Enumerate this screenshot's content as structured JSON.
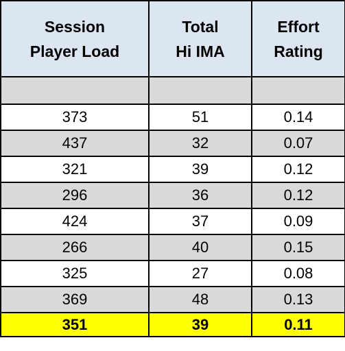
{
  "table": {
    "headers": [
      [
        "Session",
        "Player Load"
      ],
      [
        "Total",
        "Hi IMA"
      ],
      [
        "Effort",
        "Rating"
      ]
    ],
    "rows": [
      [
        373,
        51,
        0.14
      ],
      [
        437,
        32,
        0.07
      ],
      [
        321,
        39,
        0.12
      ],
      [
        296,
        36,
        0.12
      ],
      [
        424,
        37,
        0.09
      ],
      [
        266,
        40,
        0.15
      ],
      [
        325,
        27,
        0.08
      ],
      [
        369,
        48,
        0.13
      ]
    ],
    "summary": [
      351,
      39,
      0.11
    ]
  }
}
